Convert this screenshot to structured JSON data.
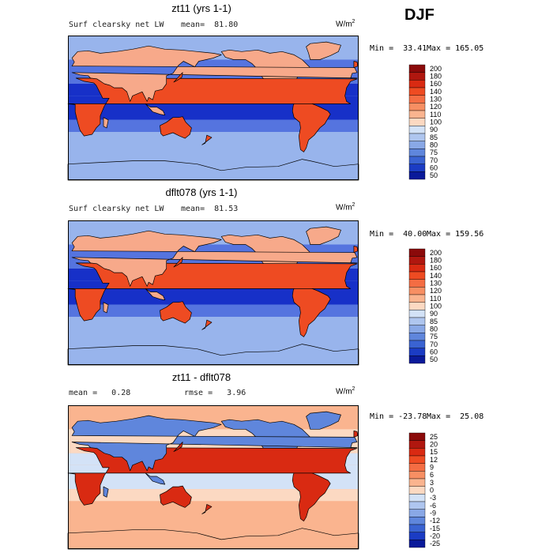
{
  "season": "DJF",
  "units": {
    "base": "W/m",
    "exp": "2"
  },
  "chart_data": [
    {
      "type": "heatmap",
      "title": "zt11 (yrs 1-1)",
      "subtitle_left": "Surf clearsky net LW",
      "stat_text": "mean=  81.80",
      "min_text": "Min =  33.41",
      "max_text": "Max = 165.05",
      "stats": {
        "mean": 81.8,
        "min": 33.41,
        "max": 165.05
      },
      "colorbar_levels": [
        "200",
        "180",
        "160",
        "140",
        "130",
        "120",
        "110",
        "100",
        "90",
        "85",
        "80",
        "75",
        "70",
        "60",
        "50"
      ],
      "colorbar_colors": [
        "#8b0a0a",
        "#b0170f",
        "#d92a12",
        "#ee4b22",
        "#f46d43",
        "#f78f63",
        "#fab48f",
        "#fcd9c2",
        "#d3e2f7",
        "#afc6ef",
        "#89a8e6",
        "#5f86dc",
        "#3a63d2",
        "#1b3cc4",
        "#0a1a9a"
      ],
      "map_palette": {
        "ocean_warm": "#5574df",
        "band": "#1730c8",
        "polar": "#98b4ec",
        "land_hot": "#ee4b22",
        "land_mid": "#f7a98a"
      }
    },
    {
      "type": "heatmap",
      "title": "dflt078 (yrs 1-1)",
      "subtitle_left": "Surf clearsky net LW",
      "stat_text": "mean=  81.53",
      "min_text": "Min =  40.00",
      "max_text": "Max = 159.56",
      "stats": {
        "mean": 81.53,
        "min": 40.0,
        "max": 159.56
      },
      "colorbar_levels": [
        "200",
        "180",
        "160",
        "140",
        "130",
        "120",
        "110",
        "100",
        "90",
        "85",
        "80",
        "75",
        "70",
        "60",
        "50"
      ],
      "colorbar_colors": [
        "#8b0a0a",
        "#b0170f",
        "#d92a12",
        "#ee4b22",
        "#f46d43",
        "#f78f63",
        "#fab48f",
        "#fcd9c2",
        "#d3e2f7",
        "#afc6ef",
        "#89a8e6",
        "#5f86dc",
        "#3a63d2",
        "#1b3cc4",
        "#0a1a9a"
      ],
      "map_palette": {
        "ocean_warm": "#5574df",
        "band": "#1730c8",
        "polar": "#98b4ec",
        "land_hot": "#ee4b22",
        "land_mid": "#f7a98a"
      }
    },
    {
      "type": "heatmap",
      "title": "zt11 - dflt078",
      "subtitle_left": "mean =   0.28",
      "stat_text": "rmse =   3.96",
      "min_text": "Min = -23.78",
      "max_text": "Max =  25.08",
      "stats": {
        "mean": 0.28,
        "rmse": 3.96,
        "min": -23.78,
        "max": 25.08
      },
      "colorbar_levels": [
        "25",
        "20",
        "15",
        "12",
        "9",
        "6",
        "3",
        "0",
        "-3",
        "-6",
        "-9",
        "-12",
        "-15",
        "-20",
        "-25"
      ],
      "colorbar_colors": [
        "#8b0a0a",
        "#b0170f",
        "#d92a12",
        "#ee4b22",
        "#f46d43",
        "#f78f63",
        "#fab48f",
        "#fcd9c2",
        "#d3e2f7",
        "#afc6ef",
        "#89a8e6",
        "#5f86dc",
        "#3a63d2",
        "#1b3cc4",
        "#0a1a9a"
      ],
      "map_palette": {
        "ocean_warm": "#fcd9c2",
        "band": "#d3e2f7",
        "polar": "#fab48f",
        "land_hot": "#d92a12",
        "land_mid": "#5f86dc"
      }
    }
  ]
}
